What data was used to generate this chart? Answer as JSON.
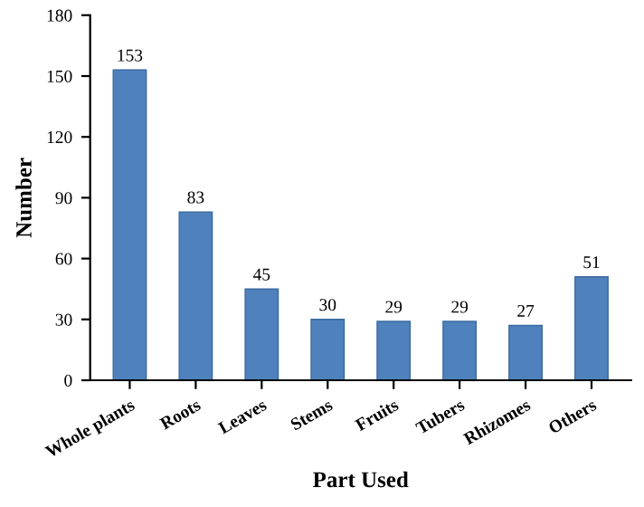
{
  "chart_data": {
    "type": "bar",
    "xlabel": "Part Used",
    "ylabel": "Number",
    "categories": [
      "Whole plants",
      "Roots",
      "Leaves",
      "Stems",
      "Fruits",
      "Tubers",
      "Rhizomes",
      "Others"
    ],
    "values": [
      153,
      83,
      45,
      30,
      29,
      29,
      27,
      51
    ],
    "color": "#4f81bd",
    "ylim": [
      0,
      180
    ],
    "yticks": [
      0,
      30,
      60,
      90,
      120,
      150,
      180
    ],
    "data_labels": true,
    "grid": false,
    "legend": false
  }
}
